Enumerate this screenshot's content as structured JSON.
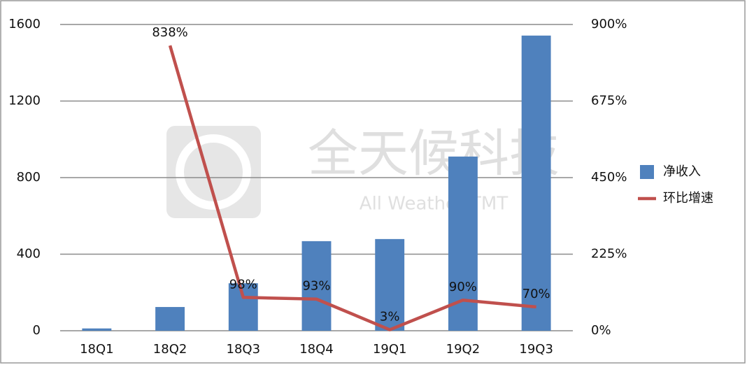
{
  "chart_data": {
    "type": "bar-line",
    "categories": [
      "18Q1",
      "18Q2",
      "18Q3",
      "18Q4",
      "19Q1",
      "19Q2",
      "19Q3"
    ],
    "series": [
      {
        "name": "净收入",
        "type": "bar",
        "color": "#4f81bd",
        "values": [
          12,
          124,
          248,
          468,
          479,
          910,
          1542
        ]
      },
      {
        "name": "环比增速",
        "type": "line",
        "axis": "y2",
        "color": "#c0504d",
        "values": [
          null,
          838,
          98,
          93,
          3,
          90,
          70
        ],
        "value_labels": [
          null,
          "838%",
          "98%",
          "93%",
          "3%",
          "90%",
          "70%"
        ]
      }
    ],
    "ylim": [
      0,
      1600
    ],
    "yticks": [
      0,
      400,
      800,
      1200,
      1600
    ],
    "y2lim": [
      0,
      900
    ],
    "y2ticks": [
      {
        "value": 0,
        "label": "0%"
      },
      {
        "value": 225,
        "label": "225%"
      },
      {
        "value": 450,
        "label": "450%"
      },
      {
        "value": 675,
        "label": "675%"
      },
      {
        "value": 900,
        "label": "900%"
      }
    ],
    "grid": true,
    "legend": "right",
    "watermark": {
      "title": "全天候科技",
      "subtitle": "All Weather TMT"
    }
  }
}
